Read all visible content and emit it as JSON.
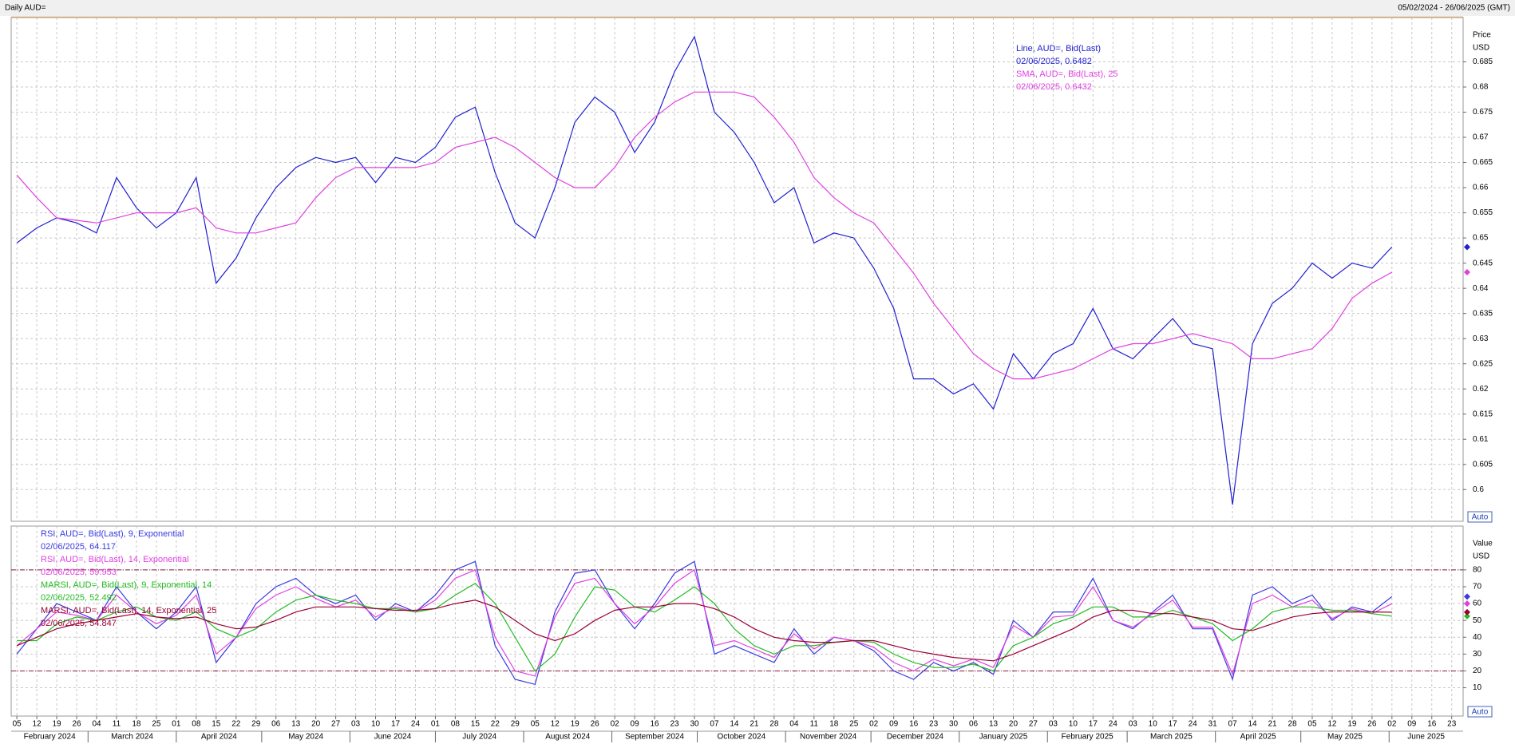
{
  "header": {
    "title": "Daily AUD=",
    "range": "05/02/2024 - 26/06/2025 (GMT)"
  },
  "chart_data": [
    {
      "type": "line",
      "y_axis_title": "Price",
      "y_axis_unit": "USD",
      "autoscale_label": "Auto",
      "xlim": [
        "2024-02-03",
        "2025-06-27"
      ],
      "ylim": [
        0.5937,
        0.6938
      ],
      "yticks": [
        0.6,
        0.605,
        0.61,
        0.615,
        0.62,
        0.625,
        0.63,
        0.635,
        0.64,
        0.645,
        0.65,
        0.655,
        0.66,
        0.665,
        0.67,
        0.675,
        0.68,
        0.685
      ],
      "grid": true,
      "x": [
        "2024-02-05",
        "2024-02-12",
        "2024-02-19",
        "2024-02-26",
        "2024-03-04",
        "2024-03-11",
        "2024-03-18",
        "2024-03-25",
        "2024-04-01",
        "2024-04-08",
        "2024-04-15",
        "2024-04-22",
        "2024-04-29",
        "2024-05-06",
        "2024-05-13",
        "2024-05-20",
        "2024-05-27",
        "2024-06-03",
        "2024-06-10",
        "2024-06-17",
        "2024-06-24",
        "2024-07-01",
        "2024-07-08",
        "2024-07-15",
        "2024-07-22",
        "2024-07-29",
        "2024-08-05",
        "2024-08-12",
        "2024-08-19",
        "2024-08-26",
        "2024-09-02",
        "2024-09-09",
        "2024-09-16",
        "2024-09-23",
        "2024-09-30",
        "2024-10-07",
        "2024-10-14",
        "2024-10-21",
        "2024-10-28",
        "2024-11-04",
        "2024-11-11",
        "2024-11-18",
        "2024-11-25",
        "2024-12-02",
        "2024-12-09",
        "2024-12-16",
        "2024-12-23",
        "2024-12-30",
        "2025-01-06",
        "2025-01-13",
        "2025-01-20",
        "2025-01-27",
        "2025-02-03",
        "2025-02-10",
        "2025-02-17",
        "2025-02-24",
        "2025-03-03",
        "2025-03-10",
        "2025-03-17",
        "2025-03-24",
        "2025-03-31",
        "2025-04-07",
        "2025-04-14",
        "2025-04-21",
        "2025-04-28",
        "2025-05-05",
        "2025-05-12",
        "2025-05-19",
        "2025-05-26",
        "2025-06-02"
      ],
      "series": [
        {
          "name": "Line, AUD=, Bid(Last)",
          "legend_detail": "02/06/2025, 0.6482",
          "color": "#2020d0",
          "values": [
            0.649,
            0.652,
            0.654,
            0.653,
            0.651,
            0.662,
            0.656,
            0.652,
            0.655,
            0.662,
            0.641,
            0.646,
            0.654,
            0.66,
            0.664,
            0.666,
            0.665,
            0.666,
            0.661,
            0.666,
            0.665,
            0.668,
            0.674,
            0.676,
            0.663,
            0.653,
            0.65,
            0.66,
            0.673,
            0.678,
            0.675,
            0.667,
            0.673,
            0.683,
            0.69,
            0.675,
            0.671,
            0.665,
            0.657,
            0.66,
            0.649,
            0.651,
            0.65,
            0.644,
            0.636,
            0.622,
            0.622,
            0.619,
            0.621,
            0.616,
            0.627,
            0.622,
            0.627,
            0.629,
            0.636,
            0.628,
            0.626,
            0.63,
            0.634,
            0.629,
            0.628,
            0.597,
            0.629,
            0.637,
            0.64,
            0.645,
            0.642,
            0.645,
            0.644,
            0.6482
          ]
        },
        {
          "name": "SMA, AUD=, Bid(Last),  25",
          "legend_detail": "02/06/2025, 0.6432",
          "color": "#e040e0",
          "values": [
            0.6625,
            0.658,
            0.654,
            0.6535,
            0.653,
            0.654,
            0.655,
            0.655,
            0.655,
            0.656,
            0.652,
            0.651,
            0.651,
            0.652,
            0.653,
            0.658,
            0.662,
            0.664,
            0.664,
            0.664,
            0.664,
            0.665,
            0.668,
            0.669,
            0.67,
            0.668,
            0.665,
            0.662,
            0.66,
            0.66,
            0.664,
            0.67,
            0.674,
            0.677,
            0.679,
            0.679,
            0.679,
            0.678,
            0.674,
            0.669,
            0.662,
            0.658,
            0.655,
            0.653,
            0.648,
            0.643,
            0.637,
            0.632,
            0.627,
            0.624,
            0.622,
            0.622,
            0.623,
            0.624,
            0.626,
            0.628,
            0.629,
            0.629,
            0.63,
            0.631,
            0.63,
            0.629,
            0.626,
            0.626,
            0.627,
            0.628,
            0.632,
            0.638,
            0.641,
            0.6432
          ]
        }
      ]
    },
    {
      "type": "line",
      "y_axis_title": "Value",
      "y_axis_unit": "USD",
      "autoscale_label": "Auto",
      "xlim": [
        "2024-02-03",
        "2025-06-27"
      ],
      "ylim": [
        -6.8,
        106
      ],
      "yticks": [
        10,
        20,
        30,
        40,
        50,
        60,
        70,
        80
      ],
      "reference_lines": [
        20,
        80
      ],
      "reference_color": "#8b1a3a",
      "grid": true,
      "x": [
        "2024-02-05",
        "2024-02-12",
        "2024-02-19",
        "2024-02-26",
        "2024-03-04",
        "2024-03-11",
        "2024-03-18",
        "2024-03-25",
        "2024-04-01",
        "2024-04-08",
        "2024-04-15",
        "2024-04-22",
        "2024-04-29",
        "2024-05-06",
        "2024-05-13",
        "2024-05-20",
        "2024-05-27",
        "2024-06-03",
        "2024-06-10",
        "2024-06-17",
        "2024-06-24",
        "2024-07-01",
        "2024-07-08",
        "2024-07-15",
        "2024-07-22",
        "2024-07-29",
        "2024-08-05",
        "2024-08-12",
        "2024-08-19",
        "2024-08-26",
        "2024-09-02",
        "2024-09-09",
        "2024-09-16",
        "2024-09-23",
        "2024-09-30",
        "2024-10-07",
        "2024-10-14",
        "2024-10-21",
        "2024-10-28",
        "2024-11-04",
        "2024-11-11",
        "2024-11-18",
        "2024-11-25",
        "2024-12-02",
        "2024-12-09",
        "2024-12-16",
        "2024-12-23",
        "2024-12-30",
        "2025-01-06",
        "2025-01-13",
        "2025-01-20",
        "2025-01-27",
        "2025-02-03",
        "2025-02-10",
        "2025-02-17",
        "2025-02-24",
        "2025-03-03",
        "2025-03-10",
        "2025-03-17",
        "2025-03-24",
        "2025-03-31",
        "2025-04-07",
        "2025-04-14",
        "2025-04-21",
        "2025-04-28",
        "2025-05-05",
        "2025-05-12",
        "2025-05-19",
        "2025-05-26",
        "2025-06-02"
      ],
      "series": [
        {
          "name": "RSI, AUD=, Bid(Last),  9, Exponential",
          "legend_detail": "02/06/2025, 64.117",
          "color": "#3a3ae0",
          "values": [
            30,
            45,
            60,
            55,
            50,
            70,
            55,
            45,
            55,
            70,
            25,
            40,
            60,
            70,
            75,
            65,
            60,
            65,
            50,
            60,
            55,
            65,
            80,
            85,
            35,
            15,
            12,
            55,
            78,
            80,
            60,
            45,
            60,
            78,
            85,
            30,
            35,
            30,
            25,
            45,
            30,
            40,
            38,
            32,
            20,
            15,
            25,
            20,
            25,
            18,
            50,
            40,
            55,
            55,
            75,
            50,
            45,
            55,
            65,
            45,
            45,
            15,
            65,
            70,
            60,
            65,
            50,
            58,
            55,
            64.117
          ]
        },
        {
          "name": "RSI, AUD=, Bid(Last),  14, Exponential",
          "legend_detail": "02/06/2025, 59.953",
          "color": "#e040e0",
          "values": [
            35,
            45,
            55,
            53,
            50,
            65,
            55,
            48,
            53,
            65,
            30,
            40,
            57,
            65,
            70,
            63,
            58,
            62,
            52,
            58,
            55,
            62,
            75,
            80,
            40,
            20,
            17,
            52,
            72,
            75,
            60,
            48,
            58,
            72,
            80,
            35,
            38,
            33,
            28,
            42,
            33,
            40,
            38,
            34,
            25,
            20,
            27,
            23,
            27,
            22,
            47,
            40,
            52,
            53,
            70,
            50,
            46,
            54,
            62,
            46,
            46,
            18,
            60,
            65,
            58,
            62,
            51,
            57,
            54,
            59.953
          ]
        },
        {
          "name": "MARSI, AUD=, Bid(Last),  9, Exponential, 14",
          "legend_detail": "02/06/2025, 52.492",
          "color": "#22bb22",
          "values": [
            38,
            38,
            48,
            52,
            50,
            55,
            58,
            52,
            50,
            55,
            45,
            40,
            45,
            55,
            62,
            65,
            62,
            60,
            57,
            57,
            55,
            57,
            65,
            72,
            60,
            40,
            20,
            30,
            52,
            70,
            68,
            58,
            55,
            62,
            70,
            60,
            45,
            35,
            30,
            35,
            35,
            37,
            38,
            37,
            30,
            25,
            22,
            22,
            24,
            20,
            35,
            40,
            48,
            52,
            58,
            58,
            52,
            52,
            56,
            52,
            48,
            38,
            45,
            55,
            58,
            58,
            56,
            56,
            54,
            52.492
          ]
        },
        {
          "name": "MARSI, AUD=, Bid(Last),  14, Exponential, 25",
          "legend_detail": "02/06/2025, 54.847",
          "color": "#990033",
          "values": [
            35,
            40,
            45,
            48,
            50,
            52,
            54,
            52,
            51,
            52,
            48,
            45,
            46,
            50,
            55,
            58,
            58,
            58,
            57,
            56,
            56,
            57,
            60,
            62,
            58,
            50,
            42,
            38,
            42,
            50,
            56,
            58,
            58,
            60,
            60,
            57,
            52,
            45,
            40,
            38,
            37,
            37,
            38,
            38,
            35,
            32,
            30,
            28,
            27,
            26,
            30,
            35,
            40,
            45,
            52,
            56,
            56,
            54,
            54,
            52,
            50,
            45,
            44,
            48,
            52,
            54,
            55,
            55,
            55,
            54.847
          ]
        }
      ],
      "xticks": [
        {
          "value": "2024-02-05",
          "label": "05"
        },
        {
          "value": "2024-02-12",
          "label": "12"
        },
        {
          "value": "2024-02-19",
          "label": "19"
        },
        {
          "value": "2024-02-26",
          "label": "26"
        },
        {
          "value": "2024-03-04",
          "label": "04"
        },
        {
          "value": "2024-03-11",
          "label": "11"
        },
        {
          "value": "2024-03-18",
          "label": "18"
        },
        {
          "value": "2024-03-25",
          "label": "25"
        },
        {
          "value": "2024-04-01",
          "label": "01"
        },
        {
          "value": "2024-04-08",
          "label": "08"
        },
        {
          "value": "2024-04-15",
          "label": "15"
        },
        {
          "value": "2024-04-22",
          "label": "22"
        },
        {
          "value": "2024-04-29",
          "label": "29"
        },
        {
          "value": "2024-05-06",
          "label": "06"
        },
        {
          "value": "2024-05-13",
          "label": "13"
        },
        {
          "value": "2024-05-20",
          "label": "20"
        },
        {
          "value": "2024-05-27",
          "label": "27"
        },
        {
          "value": "2024-06-03",
          "label": "03"
        },
        {
          "value": "2024-06-10",
          "label": "10"
        },
        {
          "value": "2024-06-17",
          "label": "17"
        },
        {
          "value": "2024-06-24",
          "label": "24"
        },
        {
          "value": "2024-07-01",
          "label": "01"
        },
        {
          "value": "2024-07-08",
          "label": "08"
        },
        {
          "value": "2024-07-15",
          "label": "15"
        },
        {
          "value": "2024-07-22",
          "label": "22"
        },
        {
          "value": "2024-07-29",
          "label": "29"
        },
        {
          "value": "2024-08-05",
          "label": "05"
        },
        {
          "value": "2024-08-12",
          "label": "12"
        },
        {
          "value": "2024-08-19",
          "label": "19"
        },
        {
          "value": "2024-08-26",
          "label": "26"
        },
        {
          "value": "2024-09-02",
          "label": "02"
        },
        {
          "value": "2024-09-09",
          "label": "09"
        },
        {
          "value": "2024-09-16",
          "label": "16"
        },
        {
          "value": "2024-09-23",
          "label": "23"
        },
        {
          "value": "2024-09-30",
          "label": "30"
        },
        {
          "value": "2024-10-07",
          "label": "07"
        },
        {
          "value": "2024-10-14",
          "label": "14"
        },
        {
          "value": "2024-10-21",
          "label": "21"
        },
        {
          "value": "2024-10-28",
          "label": "28"
        },
        {
          "value": "2024-11-04",
          "label": "04"
        },
        {
          "value": "2024-11-11",
          "label": "11"
        },
        {
          "value": "2024-11-18",
          "label": "18"
        },
        {
          "value": "2024-11-25",
          "label": "25"
        },
        {
          "value": "2024-12-02",
          "label": "02"
        },
        {
          "value": "2024-12-09",
          "label": "09"
        },
        {
          "value": "2024-12-16",
          "label": "16"
        },
        {
          "value": "2024-12-23",
          "label": "23"
        },
        {
          "value": "2024-12-30",
          "label": "30"
        },
        {
          "value": "2025-01-06",
          "label": "06"
        },
        {
          "value": "2025-01-13",
          "label": "13"
        },
        {
          "value": "2025-01-20",
          "label": "20"
        },
        {
          "value": "2025-01-27",
          "label": "27"
        },
        {
          "value": "2025-02-03",
          "label": "03"
        },
        {
          "value": "2025-02-10",
          "label": "10"
        },
        {
          "value": "2025-02-17",
          "label": "17"
        },
        {
          "value": "2025-02-24",
          "label": "24"
        },
        {
          "value": "2025-03-03",
          "label": "03"
        },
        {
          "value": "2025-03-10",
          "label": "10"
        },
        {
          "value": "2025-03-17",
          "label": "17"
        },
        {
          "value": "2025-03-24",
          "label": "24"
        },
        {
          "value": "2025-03-31",
          "label": "31"
        },
        {
          "value": "2025-04-07",
          "label": "07"
        },
        {
          "value": "2025-04-14",
          "label": "14"
        },
        {
          "value": "2025-04-21",
          "label": "21"
        },
        {
          "value": "2025-04-28",
          "label": "28"
        },
        {
          "value": "2025-05-05",
          "label": "05"
        },
        {
          "value": "2025-05-12",
          "label": "12"
        },
        {
          "value": "2025-05-19",
          "label": "19"
        },
        {
          "value": "2025-05-26",
          "label": "26"
        },
        {
          "value": "2025-06-02",
          "label": "02"
        },
        {
          "value": "2025-06-09",
          "label": "09"
        },
        {
          "value": "2025-06-16",
          "label": "16"
        },
        {
          "value": "2025-06-23",
          "label": "23"
        }
      ],
      "month_labels": [
        {
          "value": "2024-02",
          "label": "February 2024"
        },
        {
          "value": "2024-03",
          "label": "March 2024"
        },
        {
          "value": "2024-04",
          "label": "April 2024"
        },
        {
          "value": "2024-05",
          "label": "May 2024"
        },
        {
          "value": "2024-06",
          "label": "June 2024"
        },
        {
          "value": "2024-07",
          "label": "July 2024"
        },
        {
          "value": "2024-08",
          "label": "August 2024"
        },
        {
          "value": "2024-09",
          "label": "September 2024"
        },
        {
          "value": "2024-10",
          "label": "October 2024"
        },
        {
          "value": "2024-11",
          "label": "November 2024"
        },
        {
          "value": "2024-12",
          "label": "December 2024"
        },
        {
          "value": "2025-01",
          "label": "January 2025"
        },
        {
          "value": "2025-02",
          "label": "February 2025"
        },
        {
          "value": "2025-03",
          "label": "March 2025"
        },
        {
          "value": "2025-04",
          "label": "April 2025"
        },
        {
          "value": "2025-05",
          "label": "May 2025"
        },
        {
          "value": "2025-06",
          "label": "June 2025"
        }
      ]
    }
  ]
}
